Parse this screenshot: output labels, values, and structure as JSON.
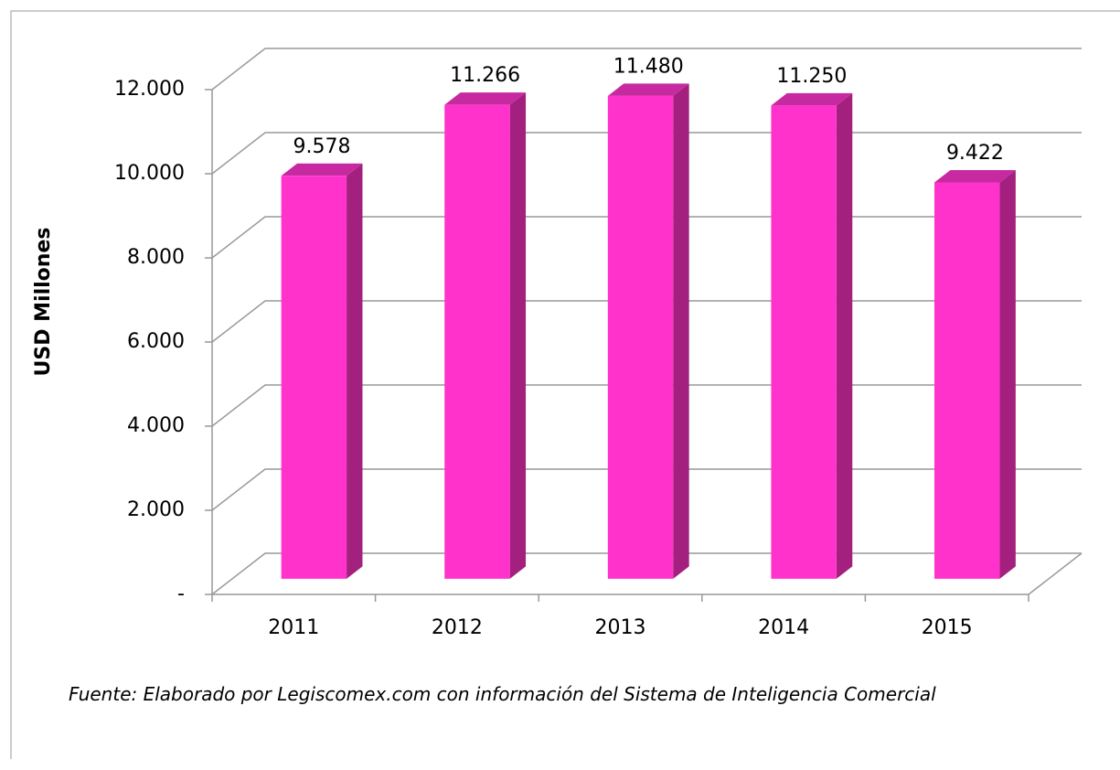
{
  "chart_data": {
    "type": "bar3d",
    "y_label": "USD Millones",
    "categories": [
      "2011",
      "2012",
      "2013",
      "2014",
      "2015"
    ],
    "values": [
      9578,
      11266,
      11480,
      11250,
      9422
    ],
    "value_labels": [
      "9.578",
      "11.266",
      "11.480",
      "11.250",
      "9.422"
    ],
    "color": "#ff33cc",
    "side_color": "#a3207f",
    "top_color": "#c72aa0",
    "ylim": [
      0,
      12000
    ],
    "yticks": [
      {
        "value": 0,
        "label": "-"
      },
      {
        "value": 2000,
        "label": "2.000"
      },
      {
        "value": 4000,
        "label": "4.000"
      },
      {
        "value": 6000,
        "label": "6.000"
      },
      {
        "value": 8000,
        "label": "8.000"
      },
      {
        "value": 10000,
        "label": "10.000"
      },
      {
        "value": 12000,
        "label": "12.000"
      }
    ],
    "grid": true,
    "note": "Fuente: Elaborado por Legiscomex.com con información del Sistema de Inteligencia Comercial"
  }
}
